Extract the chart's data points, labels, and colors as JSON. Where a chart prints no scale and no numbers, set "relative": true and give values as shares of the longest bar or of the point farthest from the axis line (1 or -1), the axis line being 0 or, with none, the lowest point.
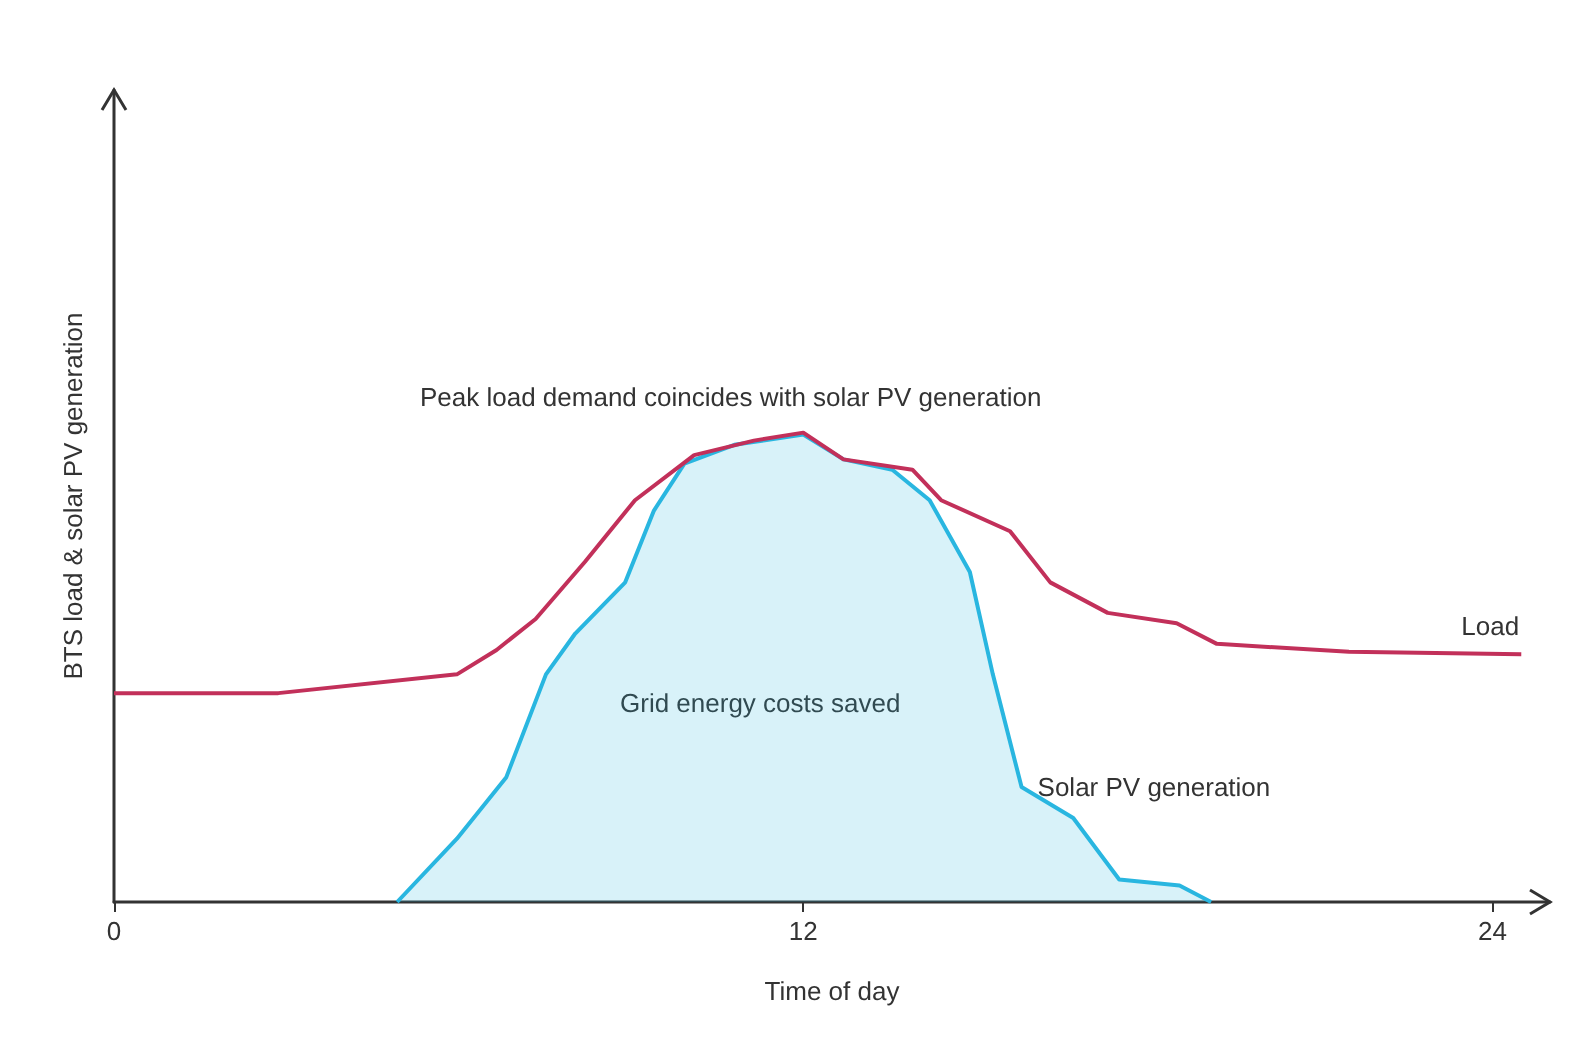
{
  "chart_data": {
    "type": "line",
    "relative": true,
    "xlabel": "Time of day",
    "ylabel": "BTS load & solar PV generation",
    "xlim": [
      0,
      25
    ],
    "xticks": [
      0,
      12,
      24
    ],
    "tick_labels": "x",
    "grid": false,
    "legend": false,
    "marker": "none",
    "annotations": [
      "Peak load demand coincides with solar PV generation",
      "Grid energy costs saved"
    ],
    "series": [
      {
        "name": "Load",
        "color": "#c2305a",
        "x": [
          0,
          2.86,
          5.97,
          6.66,
          7.34,
          8.2,
          9.07,
          10.1,
          11.14,
          12,
          12.7,
          13.9,
          14.4,
          15.6,
          16.3,
          17.3,
          18.5,
          19.2,
          21.5,
          24.5
        ],
        "values": [
          0.445,
          0.445,
          0.485,
          0.537,
          0.603,
          0.725,
          0.856,
          0.952,
          0.983,
          1.0,
          0.943,
          0.921,
          0.856,
          0.79,
          0.681,
          0.616,
          0.594,
          0.55,
          0.533,
          0.528
        ]
      },
      {
        "name": "Solar PV generation",
        "type": "area",
        "color": "#29b6e0",
        "x": [
          4.93,
          5.97,
          6.83,
          7.52,
          8.03,
          8.9,
          9.4,
          9.93,
          10.8,
          12,
          12.7,
          13.55,
          14.2,
          14.9,
          15.3,
          15.8,
          16.7,
          17.5,
          18.55,
          19.1
        ],
        "values": [
          0,
          0.135,
          0.266,
          0.485,
          0.572,
          0.681,
          0.834,
          0.934,
          0.974,
          0.996,
          0.943,
          0.921,
          0.856,
          0.703,
          0.485,
          0.245,
          0.179,
          0.048,
          0.035,
          0
        ]
      }
    ]
  }
}
